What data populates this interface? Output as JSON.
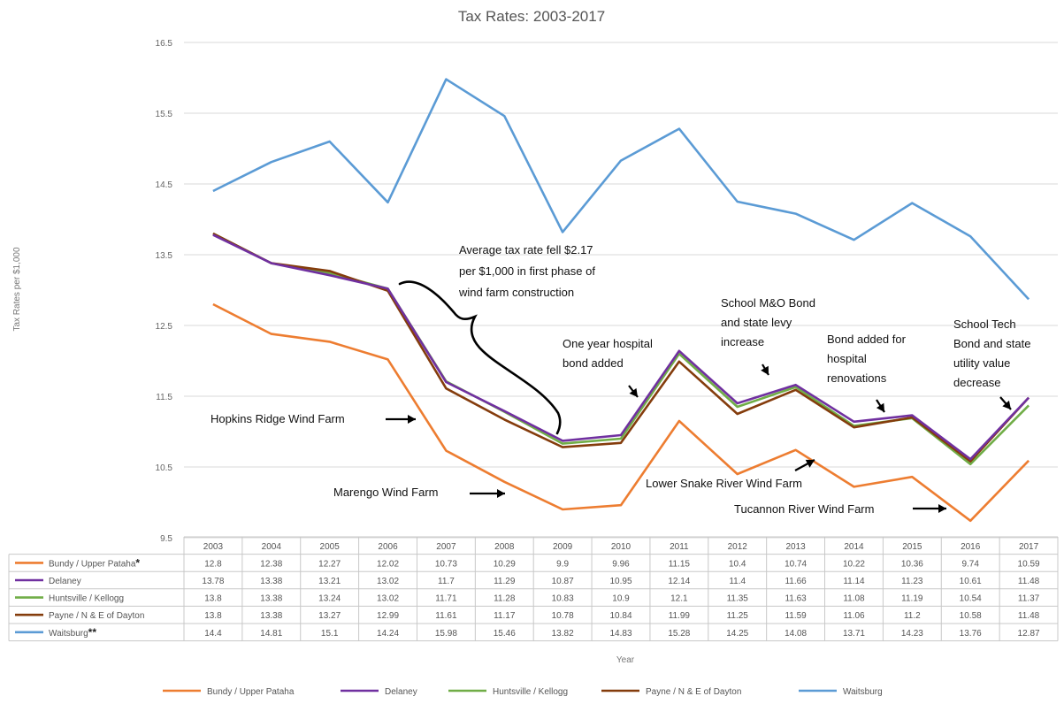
{
  "chart_data": {
    "type": "line",
    "title": "Tax Rates:  2003-2017",
    "xlabel": "Year",
    "ylabel": "Tax Rates per $1,000",
    "ylim": [
      9.5,
      16.5
    ],
    "yticks": [
      "9.5",
      "10.5",
      "11.5",
      "12.5",
      "13.5",
      "14.5",
      "15.5",
      "16.5"
    ],
    "grid": "horizontal",
    "legend": "bottom",
    "x": [
      "2003",
      "2004",
      "2005",
      "2006",
      "2007",
      "2008",
      "2009",
      "2010",
      "2011",
      "2012",
      "2013",
      "2014",
      "2015",
      "2016",
      "2017"
    ],
    "series": [
      {
        "name": "Bundy / Upper Pataha",
        "table_label": "Bundy / Upper Pataha",
        "marker": "*",
        "color": "#ED7D31",
        "values": [
          12.8,
          12.38,
          12.27,
          12.02,
          10.73,
          10.29,
          9.9,
          9.96,
          11.15,
          10.4,
          10.74,
          10.22,
          10.36,
          9.74,
          10.59
        ],
        "labels": [
          "12.8",
          "12.38",
          "12.27",
          "12.02",
          "10.73",
          "10.29",
          "9.9",
          "9.96",
          "11.15",
          "10.4",
          "10.74",
          "10.22",
          "10.36",
          "9.74",
          "10.59"
        ]
      },
      {
        "name": "Delaney",
        "table_label": "Delaney",
        "marker": "",
        "color": "#7030A0",
        "values": [
          13.78,
          13.38,
          13.21,
          13.02,
          11.7,
          11.29,
          10.87,
          10.95,
          12.14,
          11.4,
          11.66,
          11.14,
          11.23,
          10.61,
          11.48
        ],
        "labels": [
          "13.78",
          "13.38",
          "13.21",
          "13.02",
          "11.7",
          "11.29",
          "10.87",
          "10.95",
          "12.14",
          "11.4",
          "11.66",
          "11.14",
          "11.23",
          "10.61",
          "11.48"
        ]
      },
      {
        "name": "Huntsville / Kellogg",
        "table_label": "Huntsville / Kellogg",
        "marker": "",
        "color": "#70AD47",
        "values": [
          13.8,
          13.38,
          13.24,
          13.02,
          11.71,
          11.28,
          10.83,
          10.9,
          12.1,
          11.35,
          11.63,
          11.08,
          11.19,
          10.54,
          11.37
        ],
        "labels": [
          "13.8",
          "13.38",
          "13.24",
          "13.02",
          "11.71",
          "11.28",
          "10.83",
          "10.9",
          "12.1",
          "11.35",
          "11.63",
          "11.08",
          "11.19",
          "10.54",
          "11.37"
        ]
      },
      {
        "name": "Payne / N & E of Dayton",
        "table_label": "Payne / N & E of Dayton",
        "marker": "",
        "color": "#843C0C",
        "values": [
          13.8,
          13.38,
          13.27,
          12.99,
          11.61,
          11.17,
          10.78,
          10.84,
          11.99,
          11.25,
          11.59,
          11.06,
          11.2,
          10.58,
          11.48
        ],
        "labels": [
          "13.8",
          "13.38",
          "13.27",
          "12.99",
          "11.61",
          "11.17",
          "10.78",
          "10.84",
          "11.99",
          "11.25",
          "11.59",
          "11.06",
          "11.2",
          "10.58",
          "11.48"
        ]
      },
      {
        "name": "Waitsburg",
        "table_label": "Waitsburg",
        "marker": "**",
        "color": "#5B9BD5",
        "values": [
          14.4,
          14.81,
          15.1,
          14.24,
          15.98,
          15.46,
          13.82,
          14.83,
          15.28,
          14.25,
          14.08,
          13.71,
          14.23,
          13.76,
          12.87
        ],
        "labels": [
          "14.4",
          "14.81",
          "15.1",
          "14.24",
          "15.98",
          "15.46",
          "13.82",
          "14.83",
          "15.28",
          "14.25",
          "14.08",
          "13.71",
          "14.23",
          "13.76",
          "12.87"
        ]
      }
    ],
    "annotations": [
      {
        "lines": [
          "Average tax rate fell $2.17",
          "per $1,000 in first phase of",
          "wind farm construction"
        ]
      },
      {
        "lines": [
          "One year hospital",
          "bond added"
        ]
      },
      {
        "lines": [
          "School M&O Bond",
          "and state levy",
          "increase"
        ]
      },
      {
        "lines": [
          "Bond added for",
          "hospital",
          "renovations"
        ]
      },
      {
        "lines": [
          "School Tech",
          "Bond and state",
          "utility value",
          "decrease"
        ]
      },
      {
        "lines": [
          "Hopkins Ridge Wind Farm"
        ]
      },
      {
        "lines": [
          "Marengo Wind Farm"
        ]
      },
      {
        "lines": [
          "Lower Snake River Wind Farm"
        ]
      },
      {
        "lines": [
          "Tucannon River Wind Farm"
        ]
      }
    ]
  }
}
